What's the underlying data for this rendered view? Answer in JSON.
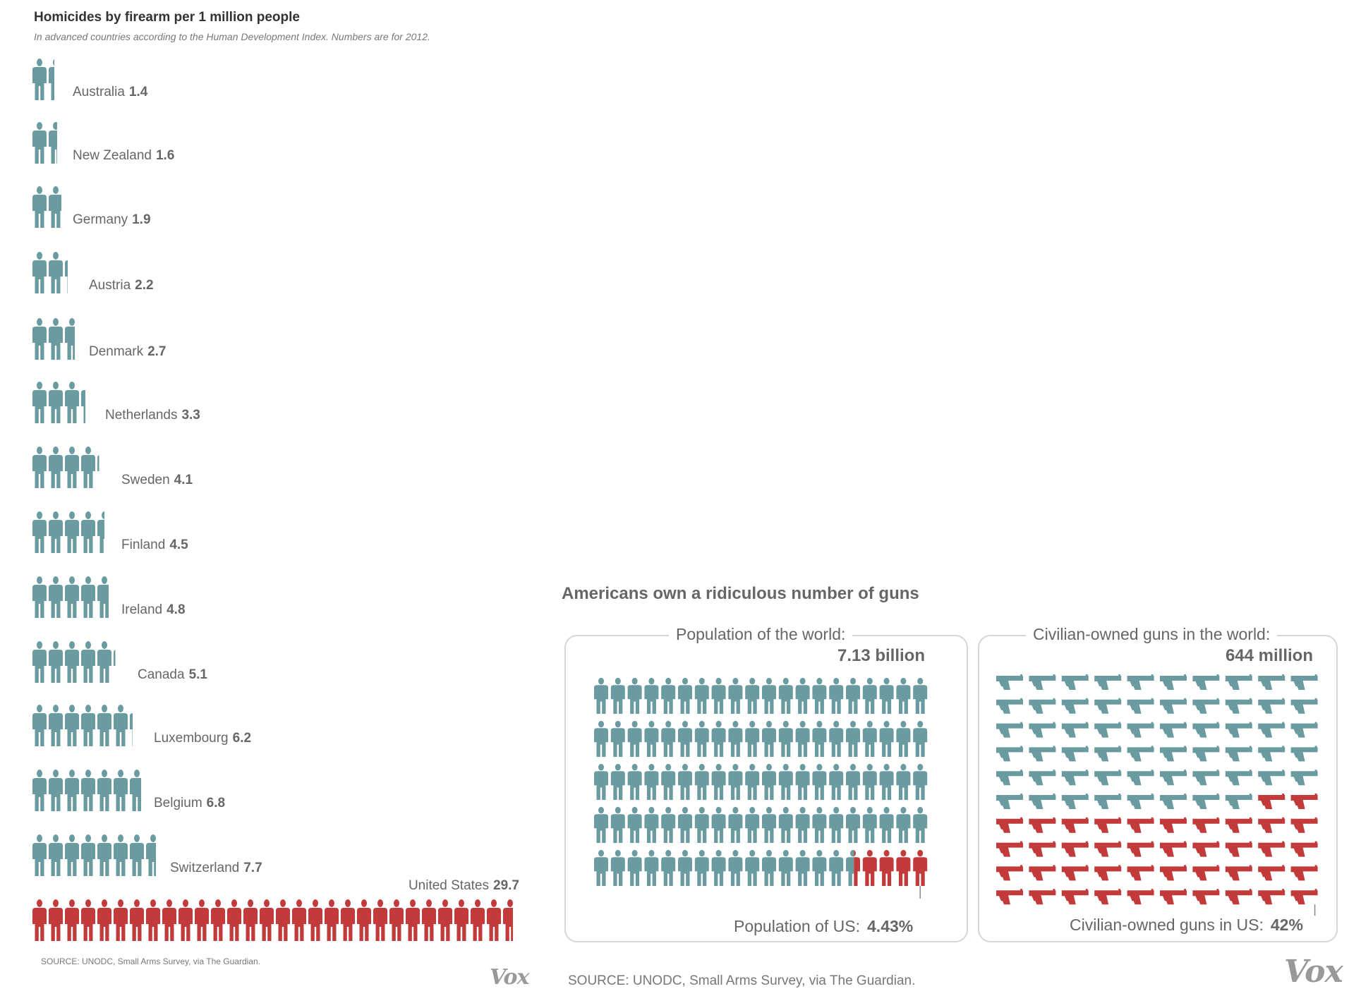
{
  "chart_data": [
    {
      "type": "bar",
      "title": "Homicides by firearm per 1 million people",
      "subtitle": "In advanced countries according to the Human Development Index. Numbers are for 2012.",
      "categories": [
        "Australia",
        "New Zealand",
        "Germany",
        "Austria",
        "Denmark",
        "Netherlands",
        "Sweden",
        "Finland",
        "Ireland",
        "Canada",
        "Luxembourg",
        "Belgium",
        "Switzerland",
        "United States"
      ],
      "values": [
        1.4,
        1.6,
        1.9,
        2.2,
        2.7,
        3.3,
        4.1,
        4.5,
        4.8,
        5.1,
        6.2,
        6.8,
        7.7,
        29.7
      ],
      "value_labels": [
        "1.4",
        "1.6",
        "1.9",
        "2.2",
        "2.7",
        "3.3",
        "4.1",
        "4.5",
        "4.8",
        "5.1",
        "6.2",
        "6.8",
        "7.7",
        "29.7"
      ],
      "source": "SOURCE: UNODC, Small Arms Survey, via The Guardian.",
      "colors": {
        "default": "#6a9ba1",
        "highlight": "#c23a3a"
      },
      "highlight": "United States"
    },
    {
      "type": "waffle",
      "title": "Americans own a ridiculous number of guns",
      "source": "SOURCE: UNODC, Small Arms Survey, via The Guardian.",
      "panels": [
        {
          "heading": "Population of the world:",
          "total": "7.13 billion",
          "icon": "person-icon",
          "rows": 5,
          "cols": 20,
          "highlight_fraction": 0.0443,
          "footer_label": "Population of US:",
          "footer_value": "4.43%"
        },
        {
          "heading": "Civilian-owned guns in the world:",
          "total": "644 million",
          "icon": "pistol-icon",
          "rows": 10,
          "cols": 10,
          "highlight_fraction": 0.42,
          "footer_label": "Civilian-owned guns in US:",
          "footer_value": "42%"
        }
      ],
      "colors": {
        "default": "#6a9ba1",
        "highlight": "#c23a3a"
      }
    }
  ],
  "logos": [
    "Vox",
    "Vox"
  ]
}
